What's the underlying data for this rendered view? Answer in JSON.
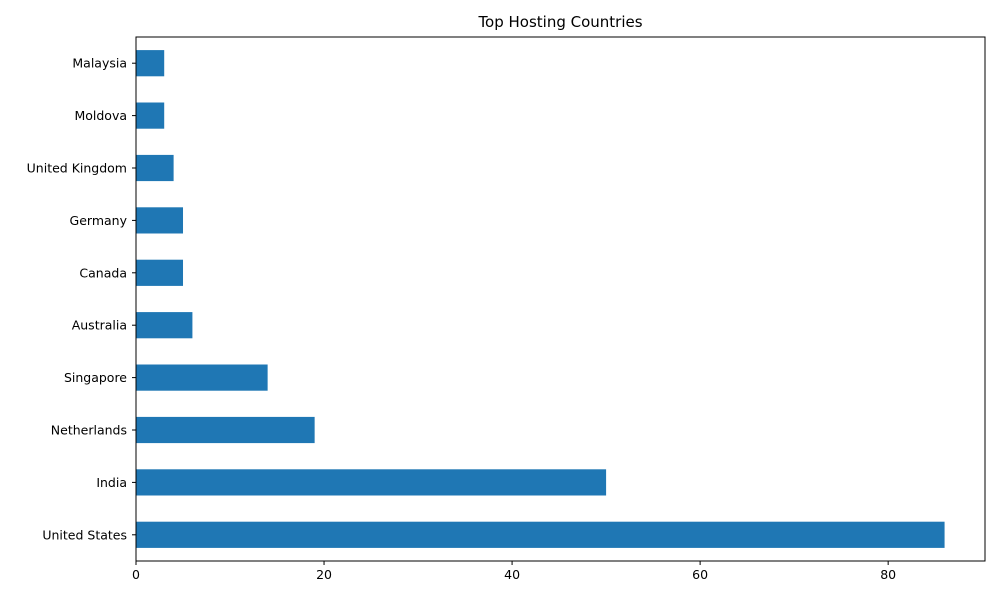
{
  "chart_data": {
    "type": "bar",
    "orientation": "horizontal",
    "title": "Top Hosting Countries",
    "xlabel": "",
    "ylabel": "",
    "categories": [
      "United States",
      "India",
      "Netherlands",
      "Singapore",
      "Australia",
      "Canada",
      "Germany",
      "United Kingdom",
      "Moldova",
      "Malaysia"
    ],
    "values": [
      86,
      50,
      19,
      14,
      6,
      5,
      5,
      4,
      3,
      3
    ],
    "xlim": [
      0,
      90.3
    ],
    "xticks": [
      0,
      20,
      40,
      60,
      80
    ],
    "grid": false,
    "bar_color": "#1f77b4"
  }
}
